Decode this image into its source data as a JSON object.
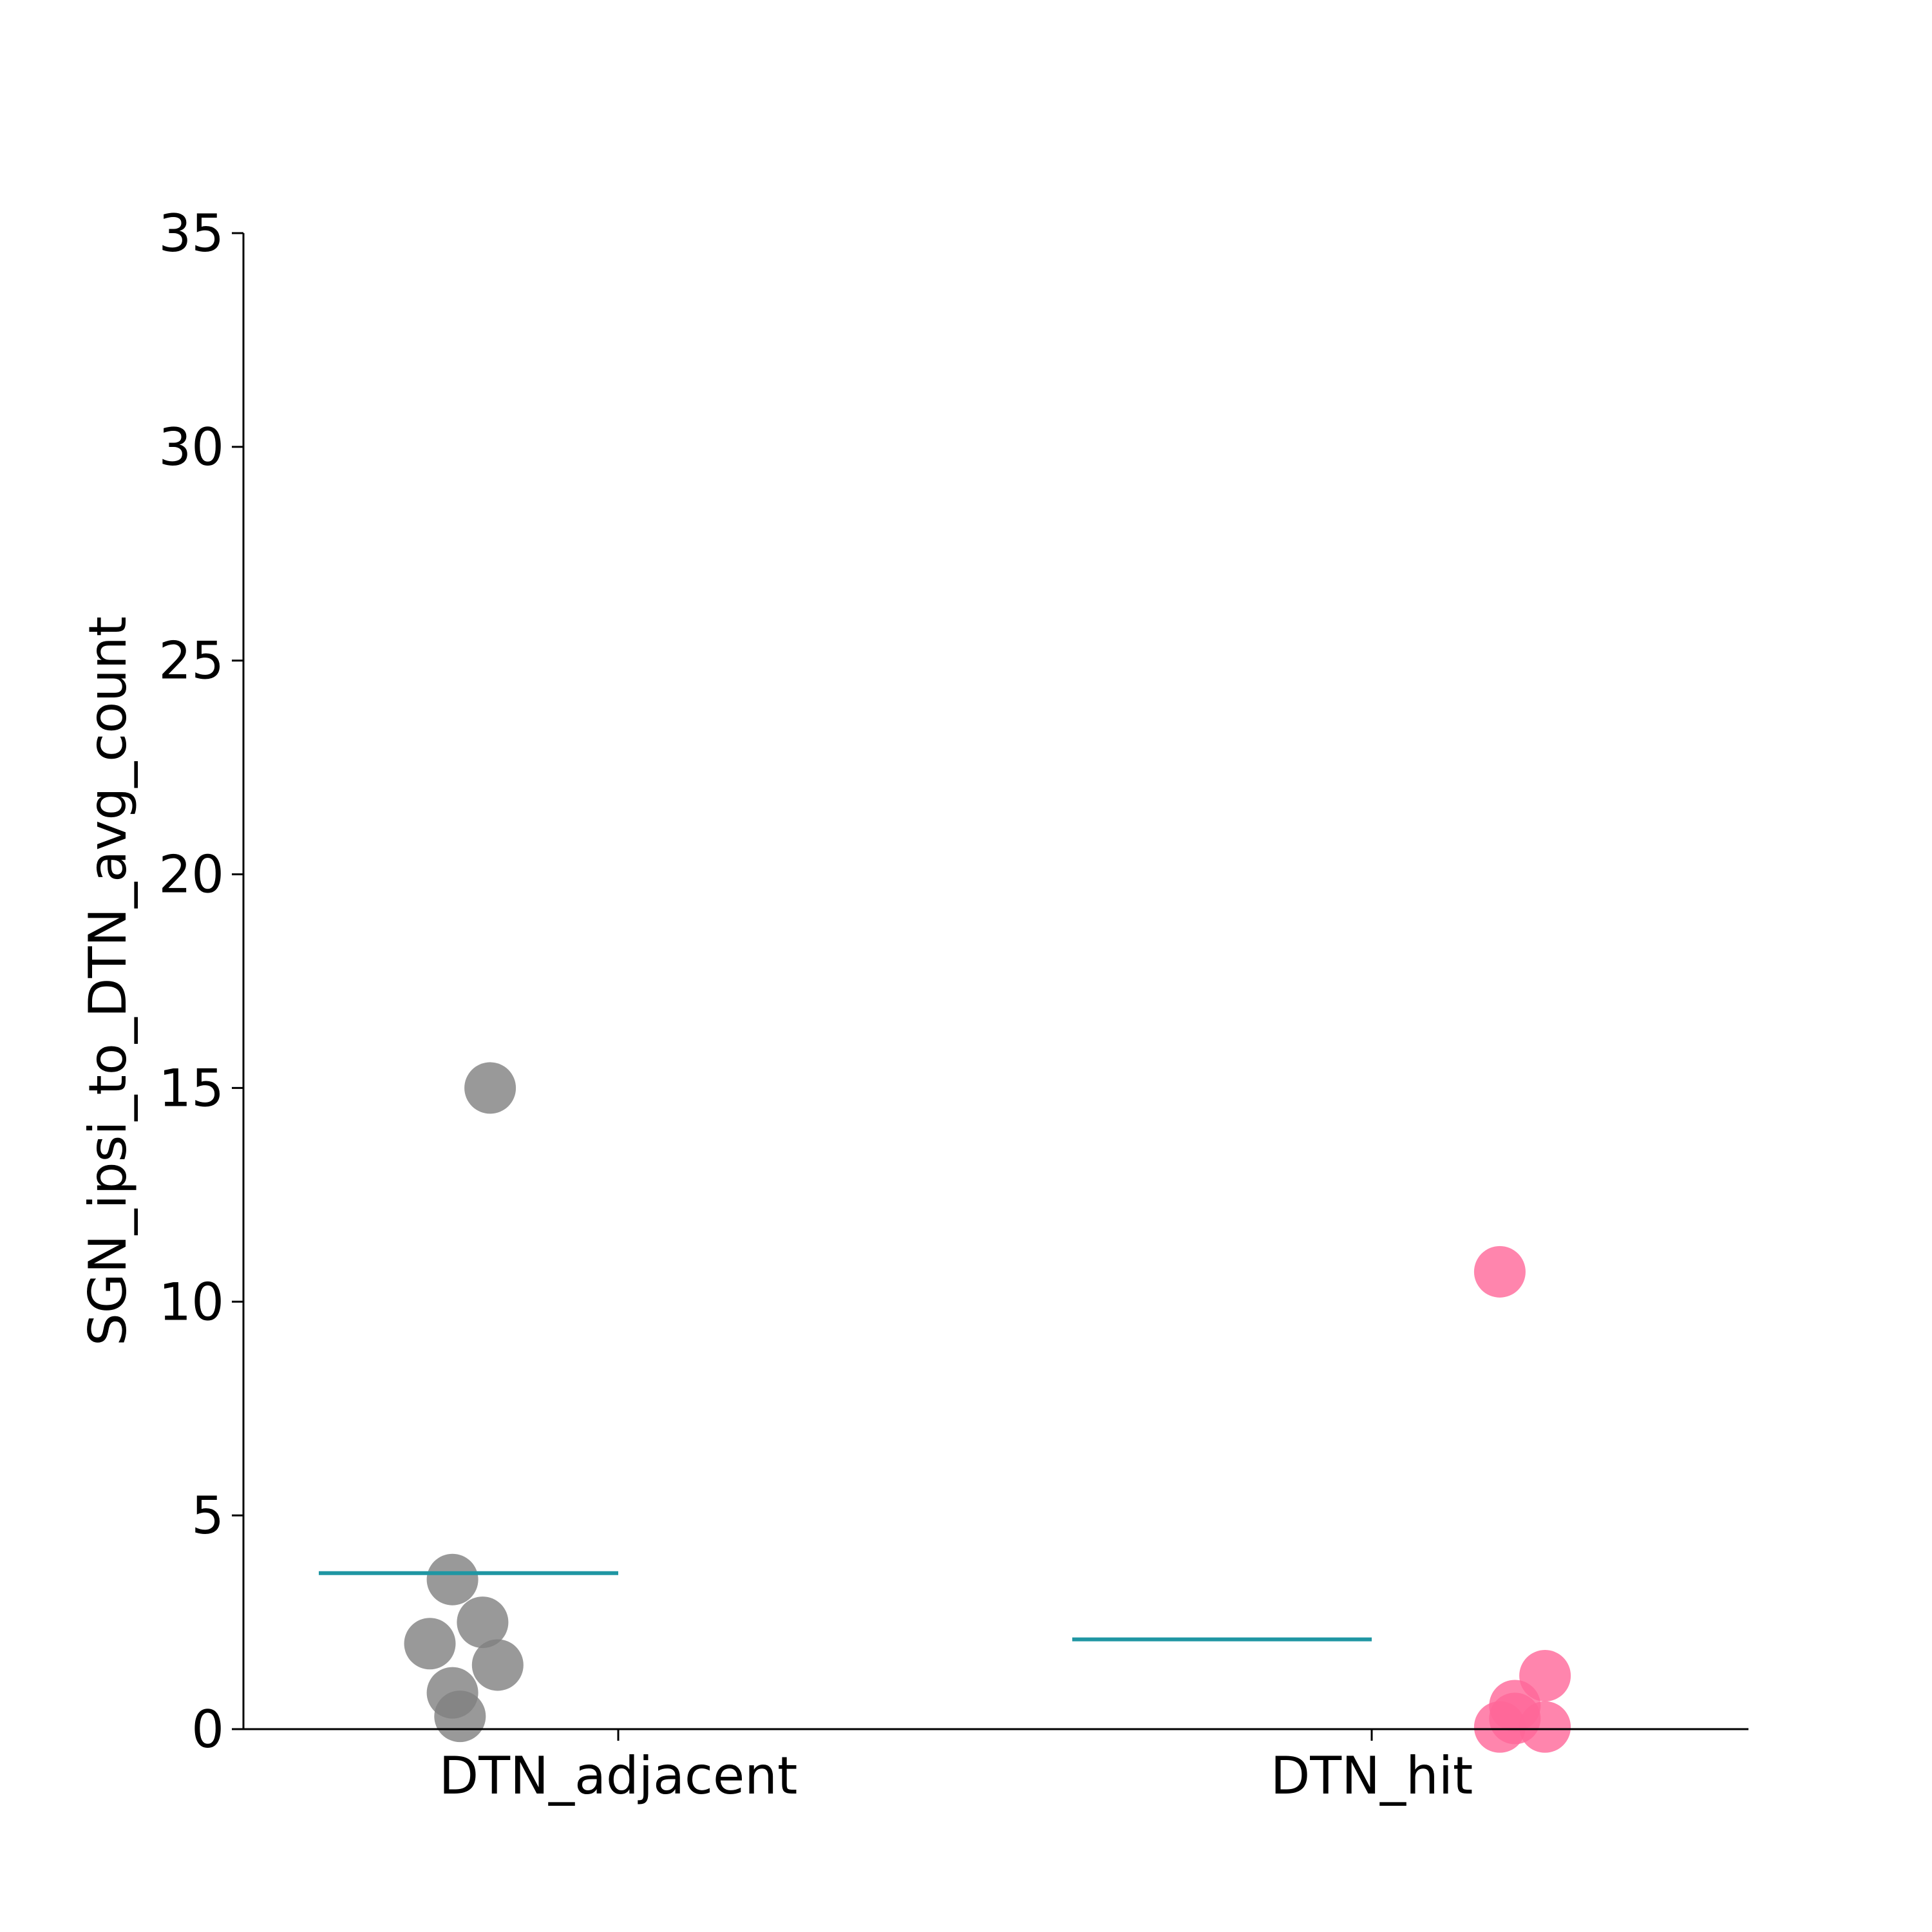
{
  "chart_data": {
    "type": "scatter",
    "title": "",
    "xlabel": "",
    "ylabel": "SGN_ipsi_to_DTN_avg_count",
    "categories": [
      "DTN_adjacent",
      "DTN_hit"
    ],
    "ylim": [
      0,
      35
    ],
    "yticks": [
      0,
      5,
      10,
      15,
      20,
      25,
      30,
      35
    ],
    "ytick_labels": [
      "0",
      "5",
      "10",
      "15",
      "20",
      "25",
      "30",
      "35"
    ],
    "grid": false,
    "series": [
      {
        "category": "DTN_adjacent",
        "color": "#808080",
        "points": [
          {
            "jitter": -0.22,
            "y": 3.5
          },
          {
            "jitter": -0.18,
            "y": 2.5
          },
          {
            "jitter": -0.25,
            "y": 2.0
          },
          {
            "jitter": -0.16,
            "y": 1.5
          },
          {
            "jitter": -0.22,
            "y": 0.85
          },
          {
            "jitter": -0.21,
            "y": 0.3
          },
          {
            "jitter": -0.17,
            "y": 15.0
          }
        ],
        "mean": 3.65
      },
      {
        "category": "DTN_hit",
        "color": "#ff6699",
        "points": [
          {
            "jitter": 0.17,
            "y": 10.7
          },
          {
            "jitter": 0.23,
            "y": 1.25
          },
          {
            "jitter": 0.19,
            "y": 0.55
          },
          {
            "jitter": 0.19,
            "y": 0.25
          },
          {
            "jitter": 0.17,
            "y": 0.05
          },
          {
            "jitter": 0.23,
            "y": 0.05
          }
        ],
        "mean": 2.1
      }
    ],
    "mean_line_color": "#1f96a3"
  }
}
